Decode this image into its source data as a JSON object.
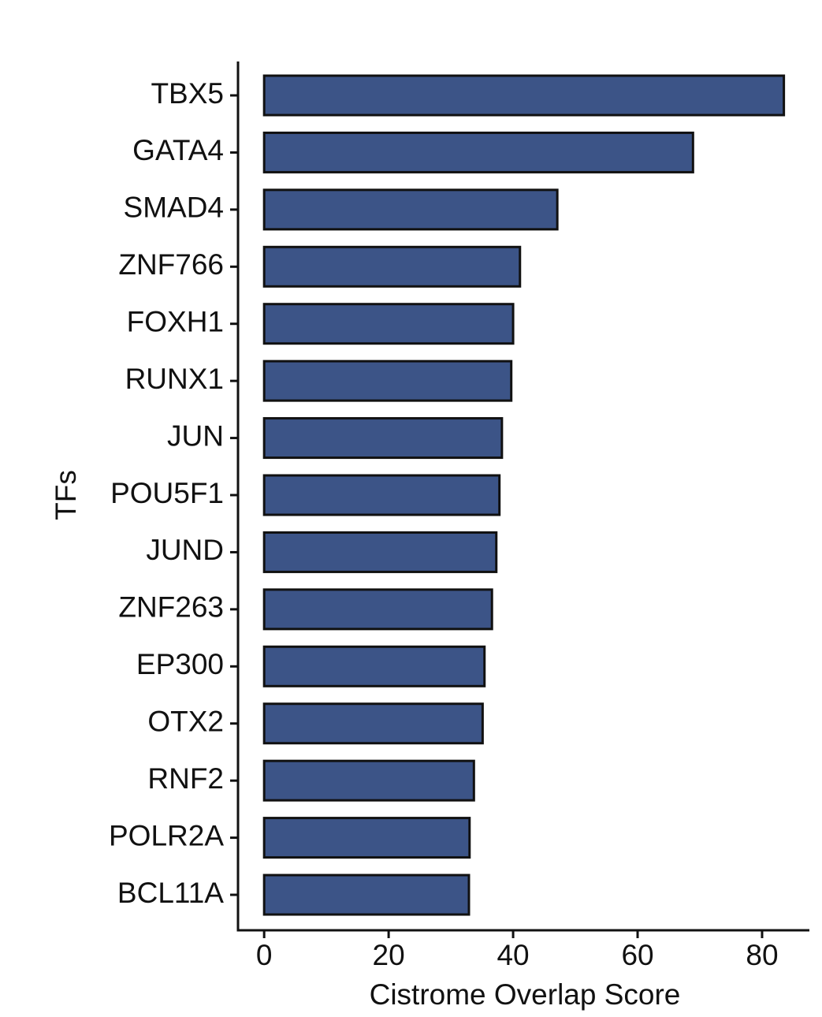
{
  "chart_data": {
    "type": "barh",
    "x_label": "Cistrome Overlap Score",
    "y_label": "TFs",
    "categories": [
      "TBX5",
      "GATA4",
      "SMAD4",
      "ZNF766",
      "FOXH1",
      "RUNX1",
      "JUN",
      "POU5F1",
      "JUND",
      "ZNF263",
      "EP300",
      "OTX2",
      "RNF2",
      "POLR2A",
      "BCL11A"
    ],
    "values": [
      83.5,
      68.9,
      47.1,
      41.1,
      40.0,
      39.7,
      38.2,
      37.8,
      37.3,
      36.6,
      35.4,
      35.1,
      33.7,
      33.0,
      32.9
    ],
    "color": "#3c5487",
    "xlim": [
      -4.2,
      87.6
    ],
    "xticks": [
      0,
      20,
      40,
      60,
      80
    ],
    "grid": false
  }
}
